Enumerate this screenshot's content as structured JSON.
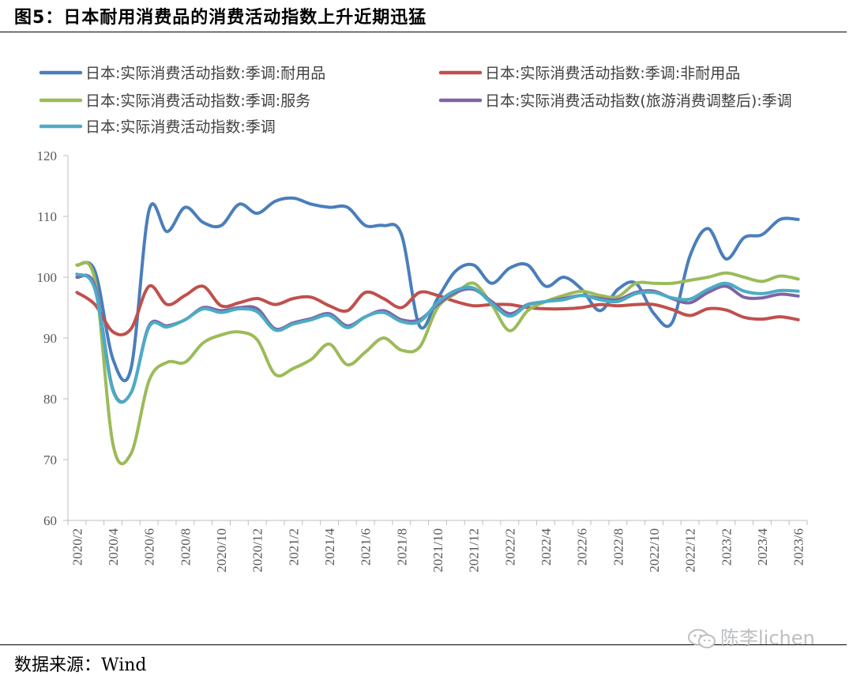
{
  "figure": {
    "title": "图5：日本耐用消费品的消费活动指数上升近期迅猛",
    "source": "数据来源：Wind",
    "watermark": "陈李lichen",
    "watermark_icon": "wechat-icon"
  },
  "chart_data": {
    "type": "line",
    "title": "",
    "xlabel": "",
    "ylabel": "",
    "ylim": [
      60,
      120
    ],
    "yticks": [
      60,
      70,
      80,
      90,
      100,
      110,
      120
    ],
    "grid": false,
    "legend_position": "top",
    "x": [
      "2020/2",
      "2020/3",
      "2020/4",
      "2020/5",
      "2020/6",
      "2020/7",
      "2020/8",
      "2020/9",
      "2020/10",
      "2020/11",
      "2020/12",
      "2021/1",
      "2021/2",
      "2021/3",
      "2021/4",
      "2021/5",
      "2021/6",
      "2021/7",
      "2021/8",
      "2021/9",
      "2021/10",
      "2021/11",
      "2021/12",
      "2022/1",
      "2022/2",
      "2022/3",
      "2022/4",
      "2022/5",
      "2022/6",
      "2022/7",
      "2022/8",
      "2022/9",
      "2022/10",
      "2022/11",
      "2022/12",
      "2023/1",
      "2023/2",
      "2023/3",
      "2023/4",
      "2023/5",
      "2023/6"
    ],
    "xtick_labels": [
      "2020/2",
      "2020/4",
      "2020/6",
      "2020/8",
      "2020/10",
      "2020/12",
      "2021/2",
      "2021/4",
      "2021/6",
      "2021/8",
      "2021/10",
      "2021/12",
      "2022/2",
      "2022/4",
      "2022/6",
      "2022/8",
      "2022/10",
      "2022/12",
      "2023/2",
      "2023/4",
      "2023/6"
    ],
    "series": [
      {
        "name": "日本:实际消费活动指数:季调:耐用品",
        "color": "#4a7ebb",
        "values": [
          102,
          101,
          86.5,
          85,
          111,
          107.5,
          111.5,
          109,
          108.5,
          112,
          110.5,
          112.5,
          113,
          112,
          111.5,
          111.5,
          108.5,
          108.5,
          107,
          92,
          96.5,
          101,
          102,
          99,
          101.5,
          102,
          98.5,
          100,
          98,
          94.5,
          98,
          99,
          94,
          92.5,
          103.5,
          108,
          103,
          106.5,
          107,
          109.5,
          109.5
        ]
      },
      {
        "name": "日本:实际消费活动指数:季调:非耐用品",
        "color": "#c0504d",
        "values": [
          97.5,
          95.5,
          91,
          91.5,
          98.5,
          95.5,
          97,
          98.5,
          95.3,
          95.8,
          96.5,
          95.5,
          96.5,
          96.7,
          95.3,
          94.5,
          97.5,
          96.5,
          95,
          97.5,
          97,
          96,
          95.3,
          95.5,
          95.5,
          95,
          94.8,
          94.8,
          95,
          95.5,
          95.3,
          95.5,
          95.5,
          94.7,
          93.7,
          94.8,
          94.6,
          93.4,
          93.1,
          93.5,
          93
        ]
      },
      {
        "name": "日本:实际消费活动指数:季调:服务",
        "color": "#9bbb59",
        "values": [
          102,
          99.5,
          72.5,
          71,
          83,
          86,
          86,
          89.2,
          90.5,
          91,
          89.7,
          84,
          85,
          86.5,
          89,
          85.6,
          87.7,
          90,
          88,
          88.5,
          95,
          97.3,
          99,
          95.5,
          91.2,
          94.5,
          96,
          97,
          97.7,
          97,
          96.8,
          99,
          99,
          99,
          99.5,
          100,
          100.7,
          100,
          99.3,
          100.2,
          99.7
        ]
      },
      {
        "name": "日本:实际消费活动指数(旅游消费调整后):季调",
        "color": "#8064a2",
        "values": [
          100,
          98.5,
          81.5,
          81,
          92,
          92,
          93,
          95,
          94.5,
          95,
          94.8,
          91.5,
          92.5,
          93.2,
          94,
          92,
          93.5,
          94.5,
          93,
          93,
          95.5,
          97.5,
          98,
          96,
          94,
          95.5,
          96,
          96.5,
          97,
          96.5,
          96.3,
          97.5,
          97.7,
          96.5,
          95.8,
          97.5,
          98.5,
          96.7,
          96.6,
          97.2,
          96.9
        ]
      },
      {
        "name": "日本:实际消费活动指数:季调",
        "color": "#4bacc6",
        "values": [
          100.5,
          98,
          81.3,
          81,
          91.8,
          91.8,
          93,
          94.8,
          94.2,
          94.8,
          94.3,
          91.3,
          92.3,
          93,
          93.7,
          91.7,
          93.5,
          94.2,
          92.7,
          92.7,
          95.8,
          97.8,
          98.2,
          95.7,
          93.6,
          95.4,
          96,
          96.3,
          97,
          96.3,
          96,
          97.3,
          97.5,
          96.6,
          96.4,
          98,
          99,
          97.7,
          97.3,
          97.8,
          97.7
        ]
      }
    ]
  }
}
